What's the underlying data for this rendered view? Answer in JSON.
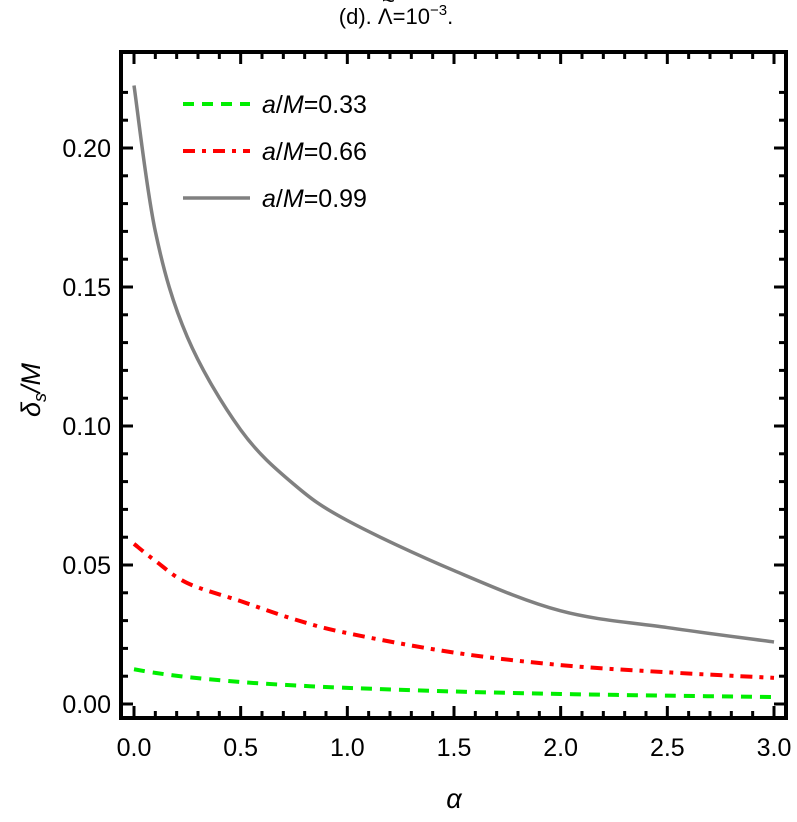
{
  "chart_data": {
    "type": "line",
    "title": "(d). Λ̃=10⁻³.",
    "title_parts": {
      "prefix": "(d). ",
      "symbol": "Λ",
      "eq": "=10",
      "exp": "−3",
      "suffix": "."
    },
    "xlabel": "α",
    "ylabel": "δs/M",
    "ylabel_parts": {
      "main": "δ",
      "sub": "s",
      "rest": "/M"
    },
    "xlim": [
      -0.03,
      3.05
    ],
    "ylim": [
      -0.005,
      0.2335
    ],
    "xticks": [
      "0.0",
      "0.5",
      "1.0",
      "1.5",
      "2.0",
      "2.5",
      "3.0"
    ],
    "yticks": [
      "0.00",
      "0.05",
      "0.10",
      "0.15",
      "0.20"
    ],
    "grid": false,
    "legend_position": "upper-left-inside",
    "x": [
      0.0,
      0.1,
      0.25,
      0.5,
      0.75,
      1.0,
      1.5,
      2.0,
      2.5,
      3.0
    ],
    "series": [
      {
        "name": "a/M=0.33",
        "label_parts": {
          "a": "a",
          "slash": "/",
          "M": "M",
          "val": "=0.33"
        },
        "color": "#00ee00",
        "style": "dashed",
        "values": [
          0.0125,
          0.0112,
          0.0097,
          0.0079,
          0.0067,
          0.0058,
          0.0045,
          0.0036,
          0.003,
          0.0025
        ]
      },
      {
        "name": "a/M=0.66",
        "label_parts": {
          "a": "a",
          "slash": "/",
          "M": "M",
          "val": "=0.66"
        },
        "color": "#ff0000",
        "style": "dash-dot",
        "values": [
          0.0576,
          0.0515,
          0.0435,
          0.037,
          0.0305,
          0.0255,
          0.0185,
          0.014,
          0.0114,
          0.0094
        ]
      },
      {
        "name": "a/M=0.99",
        "label_parts": {
          "a": "a",
          "slash": "/",
          "M": "M",
          "val": "=0.99"
        },
        "color": "#808080",
        "style": "solid",
        "values": [
          0.2225,
          0.17,
          0.132,
          0.0986,
          0.079,
          0.066,
          0.048,
          0.0335,
          0.0275,
          0.0223
        ]
      }
    ]
  }
}
